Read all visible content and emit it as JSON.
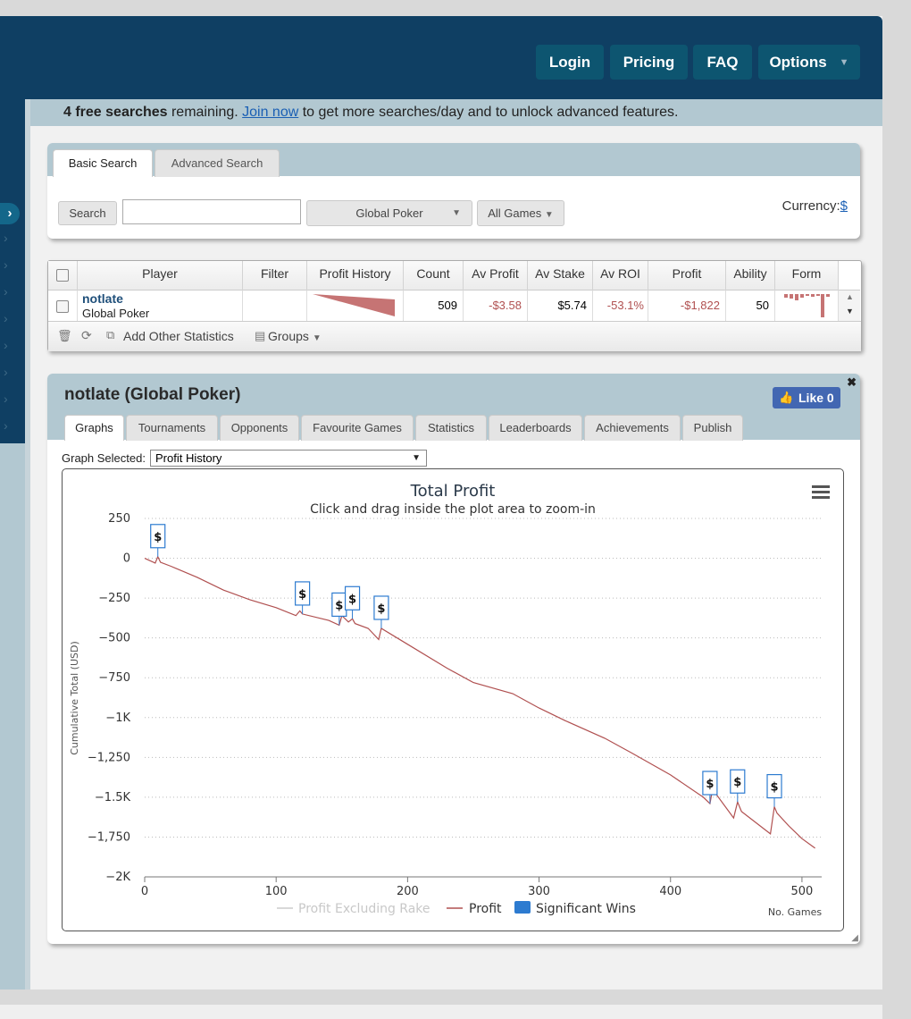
{
  "nav": {
    "login": "Login",
    "pricing": "Pricing",
    "faq": "FAQ",
    "options": "Options"
  },
  "notice": {
    "bold": "4 free searches",
    "text1": " remaining. ",
    "link": "Join now",
    "text2": " to get more searches/day and to unlock advanced features."
  },
  "search": {
    "tabs": [
      "Basic Search",
      "Advanced Search"
    ],
    "button": "Search",
    "input_value": "",
    "network": "Global Poker",
    "games": "All Games",
    "currency_label": "Currency:",
    "currency_value": "$"
  },
  "results": {
    "columns": [
      "Player",
      "Filter",
      "Profit History",
      "Count",
      "Av Profit",
      "Av Stake",
      "Av ROI",
      "Profit",
      "Ability",
      "Form"
    ],
    "row": {
      "player": "notlate",
      "network": "Global Poker",
      "count": "509",
      "av_profit": "-$3.58",
      "av_stake": "$5.74",
      "av_roi": "-53.1%",
      "profit": "-$1,822",
      "ability": "50"
    },
    "footer": {
      "add_stats": "Add Other Statistics",
      "groups": "Groups"
    }
  },
  "player_panel": {
    "title": "notlate (Global Poker)",
    "like": "Like 0",
    "tabs": [
      "Graphs",
      "Tournaments",
      "Opponents",
      "Favourite Games",
      "Statistics",
      "Leaderboards",
      "Achievements",
      "Publish"
    ],
    "graph_selected_label": "Graph Selected:",
    "graph_selected_value": "Profit History"
  },
  "colors": {
    "header": "#0f3f63",
    "nav_button": "#0d5570",
    "profit_line": "#b05050",
    "significant_wins": "#2d7bd0"
  },
  "icons": [
    "chevron-right-icon",
    "trash-icon",
    "refresh-icon",
    "window-icon",
    "save-icon",
    "thumbs-up-icon",
    "close-icon",
    "hamburger-menu-icon",
    "resize-handle-icon"
  ],
  "chart_data": {
    "type": "line",
    "title": "Total Profit",
    "subtitle": "Click and drag inside the plot area to zoom-in",
    "xlabel": "No. Games",
    "ylabel": "Cumulative Total (USD)",
    "xlim": [
      0,
      515
    ],
    "ylim": [
      -2000,
      250
    ],
    "x_ticks": [
      0,
      100,
      200,
      300,
      400,
      500
    ],
    "x_tick_labels": [
      "0",
      "100",
      "200",
      "300",
      "400",
      "500"
    ],
    "y_ticks": [
      250,
      0,
      -250,
      -500,
      -750,
      -1000,
      -1250,
      -1500,
      -1750,
      -2000
    ],
    "y_tick_labels": [
      "250",
      "0",
      "−250",
      "−500",
      "−750",
      "−1K",
      "−1,250",
      "−1.5K",
      "−1,750",
      "−2K"
    ],
    "legend": [
      "Profit Excluding Rake",
      "Profit",
      "Significant Wins"
    ],
    "legend_position": "bottom",
    "grid": "horizontal dotted",
    "series": [
      {
        "name": "Profit",
        "x": [
          0,
          8,
          10,
          12,
          20,
          40,
          60,
          80,
          100,
          115,
          118,
          120,
          140,
          148,
          150,
          155,
          158,
          160,
          170,
          178,
          180,
          200,
          230,
          250,
          280,
          300,
          320,
          350,
          370,
          400,
          425,
          430,
          432,
          448,
          451,
          454,
          476,
          479,
          481,
          490,
          500,
          510
        ],
        "y": [
          0,
          -30,
          10,
          -25,
          -50,
          -120,
          -200,
          -260,
          -310,
          -360,
          -330,
          -350,
          -390,
          -420,
          -360,
          -400,
          -380,
          -410,
          -440,
          -510,
          -440,
          -540,
          -690,
          -780,
          -850,
          -940,
          -1020,
          -1130,
          -1220,
          -1360,
          -1500,
          -1540,
          -1450,
          -1630,
          -1530,
          -1590,
          -1730,
          -1560,
          -1600,
          -1680,
          -1760,
          -1820
        ]
      }
    ],
    "significant_wins_x": [
      10,
      120,
      148,
      158,
      180,
      430,
      451,
      479
    ],
    "significant_wins_label": "$"
  }
}
